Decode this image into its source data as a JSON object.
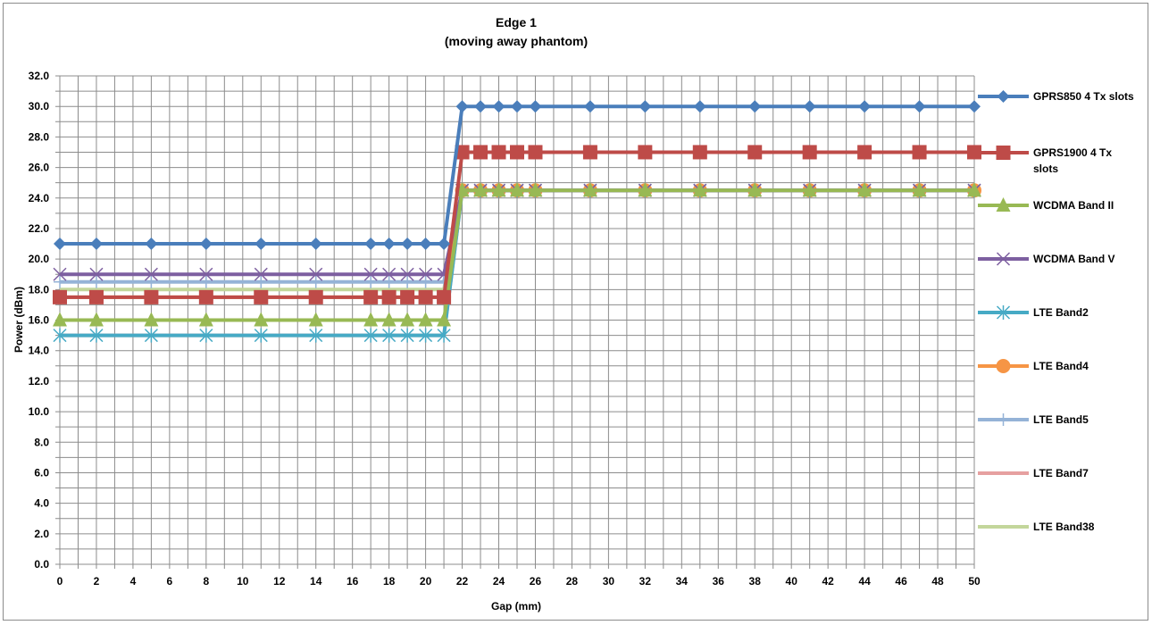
{
  "chart_data": {
    "type": "line",
    "title": "Edge 1",
    "subtitle": "(moving away phantom)",
    "xlabel": "Gap (mm)",
    "ylabel": "Power (dBm)",
    "ylim": [
      0,
      32
    ],
    "ytick_labels": [
      "0.0",
      "2.0",
      "4.0",
      "6.0",
      "8.0",
      "10.0",
      "12.0",
      "14.0",
      "16.0",
      "18.0",
      "20.0",
      "22.0",
      "24.0",
      "26.0",
      "28.0",
      "30.0",
      "32.0"
    ],
    "x": [
      0,
      2,
      5,
      8,
      11,
      14,
      17,
      18,
      19,
      20,
      21,
      22,
      23,
      24,
      25,
      26,
      29,
      32,
      35,
      38,
      41,
      44,
      47,
      50
    ],
    "xtick_labels": [
      "0",
      "2",
      "4",
      "6",
      "8",
      "10",
      "12",
      "14",
      "16",
      "18",
      "20",
      "22",
      "24",
      "26",
      "28",
      "30",
      "32",
      "34",
      "36",
      "38",
      "40",
      "42",
      "44",
      "46",
      "48",
      "50"
    ],
    "grid": true,
    "legend_position": "right",
    "series": [
      {
        "name": "GPRS850 4 Tx slots",
        "color": "#4a7ebb",
        "marker": "diamond",
        "values": [
          21,
          21,
          21,
          21,
          21,
          21,
          21,
          21,
          21,
          21,
          21,
          30,
          30,
          30,
          30,
          30,
          30,
          30,
          30,
          30,
          30,
          30,
          30,
          30
        ]
      },
      {
        "name": "GPRS1900 4 Tx slots",
        "color": "#be4b48",
        "marker": "square",
        "values": [
          17.5,
          17.5,
          17.5,
          17.5,
          17.5,
          17.5,
          17.5,
          17.5,
          17.5,
          17.5,
          17.5,
          27,
          27,
          27,
          27,
          27,
          27,
          27,
          27,
          27,
          27,
          27,
          27,
          27
        ]
      },
      {
        "name": "WCDMA Band II",
        "color": "#98b954",
        "marker": "triangle",
        "values": [
          16,
          16,
          16,
          16,
          16,
          16,
          16,
          16,
          16,
          16,
          16,
          24.5,
          24.5,
          24.5,
          24.5,
          24.5,
          24.5,
          24.5,
          24.5,
          24.5,
          24.5,
          24.5,
          24.5,
          24.5
        ]
      },
      {
        "name": "WCDMA Band V",
        "color": "#7d5fa0",
        "marker": "x",
        "values": [
          19,
          19,
          19,
          19,
          19,
          19,
          19,
          19,
          19,
          19,
          19,
          24.5,
          24.5,
          24.5,
          24.5,
          24.5,
          24.5,
          24.5,
          24.5,
          24.5,
          24.5,
          24.5,
          24.5,
          24.5
        ]
      },
      {
        "name": "LTE Band2",
        "color": "#46aac5",
        "marker": "star",
        "values": [
          15,
          15,
          15,
          15,
          15,
          15,
          15,
          15,
          15,
          15,
          15,
          24.5,
          24.5,
          24.5,
          24.5,
          24.5,
          24.5,
          24.5,
          24.5,
          24.5,
          24.5,
          24.5,
          24.5,
          24.5
        ]
      },
      {
        "name": "LTE Band4",
        "color": "#f69545",
        "marker": "circle",
        "values": [
          17.5,
          17.5,
          17.5,
          17.5,
          17.5,
          17.5,
          17.5,
          17.5,
          17.5,
          17.5,
          17.5,
          24.5,
          24.5,
          24.5,
          24.5,
          24.5,
          24.5,
          24.5,
          24.5,
          24.5,
          24.5,
          24.5,
          24.5,
          24.5
        ]
      },
      {
        "name": "LTE Band5",
        "color": "#95b3d7",
        "marker": "plus",
        "values": [
          18.5,
          18.5,
          18.5,
          18.5,
          18.5,
          18.5,
          18.5,
          18.5,
          18.5,
          18.5,
          18.5,
          24.5,
          24.5,
          24.5,
          24.5,
          24.5,
          24.5,
          24.5,
          24.5,
          24.5,
          24.5,
          24.5,
          24.5,
          24.5
        ]
      },
      {
        "name": "LTE Band7",
        "color": "#e6a0a0",
        "marker": "none",
        "values": [
          15,
          15,
          15,
          15,
          15,
          15,
          15,
          15,
          15,
          15,
          15,
          24.5,
          24.5,
          24.5,
          24.5,
          24.5,
          24.5,
          24.5,
          24.5,
          24.5,
          24.5,
          24.5,
          24.5,
          24.5
        ]
      },
      {
        "name": "LTE Band38",
        "color": "#c3d69b",
        "marker": "none",
        "values": [
          18,
          18,
          18,
          18,
          18,
          18,
          18,
          18,
          18,
          18,
          18,
          24.5,
          24.5,
          24.5,
          24.5,
          24.5,
          24.5,
          24.5,
          24.5,
          24.5,
          24.5,
          24.5,
          24.5,
          24.5
        ]
      }
    ]
  }
}
